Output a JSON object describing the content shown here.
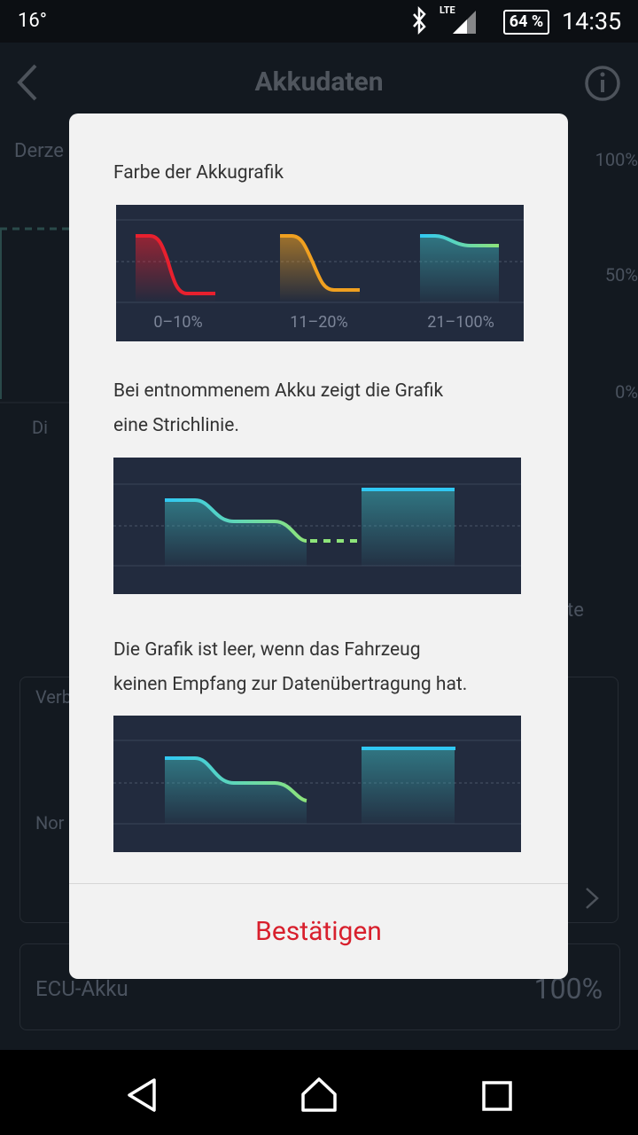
{
  "status_bar": {
    "temperature": "16°",
    "network": "LTE",
    "battery": "64 %",
    "time": "14:35"
  },
  "header": {
    "title": "Akkudaten"
  },
  "background": {
    "label_current": "Derze",
    "axis_top": "100%",
    "axis_mid": "50%",
    "axis_bottom": "0%",
    "day": "Di",
    "side_text": "te",
    "card_label_1": "Verb",
    "card_label_2": "Nor",
    "ecu_label": "ECU-Akku",
    "ecu_value": "100%"
  },
  "dialog": {
    "section_1": {
      "title": "Farbe der Akkugrafik",
      "legend": [
        "0–10%",
        "11–20%",
        "21–100%"
      ]
    },
    "section_2": {
      "text_lines": [
        "Bei entnommenem Akku zeigt die Grafik",
        "eine Strichlinie."
      ]
    },
    "section_3": {
      "text_lines": [
        "Die Grafik ist leer, wenn das Fahrzeug",
        "keinen Empfang zur Datenübertragung hat."
      ]
    },
    "confirm_button": "Bestätigen"
  }
}
